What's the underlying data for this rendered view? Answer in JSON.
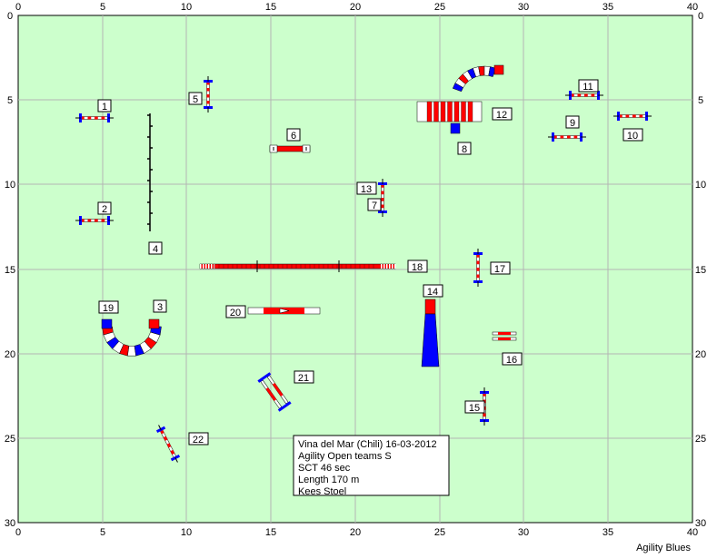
{
  "axis": {
    "x_ticks": [
      "0",
      "5",
      "10",
      "15",
      "20",
      "25",
      "30",
      "35",
      "40"
    ],
    "y_ticks": [
      "0",
      "5",
      "10",
      "15",
      "20",
      "25",
      "30"
    ]
  },
  "course_numbers": [
    "1",
    "2",
    "3",
    "4",
    "5",
    "6",
    "7",
    "8",
    "9",
    "10",
    "11",
    "12",
    "13",
    "14",
    "15",
    "16",
    "17",
    "18",
    "19",
    "20",
    "21",
    "22"
  ],
  "info": {
    "line1": "Vina del Mar (Chili) 16-03-2012",
    "line2": "Agility Open teams S",
    "line3": "SCT 46 sec",
    "line4": "Length 170 m",
    "line5": "Kees Stoel"
  },
  "brand": "Agility Blues",
  "colors": {
    "field": "#ccffcc",
    "grid": "#b4b4b4",
    "red": "#ff0000",
    "blue": "#0000ff",
    "white": "#ffffff"
  }
}
